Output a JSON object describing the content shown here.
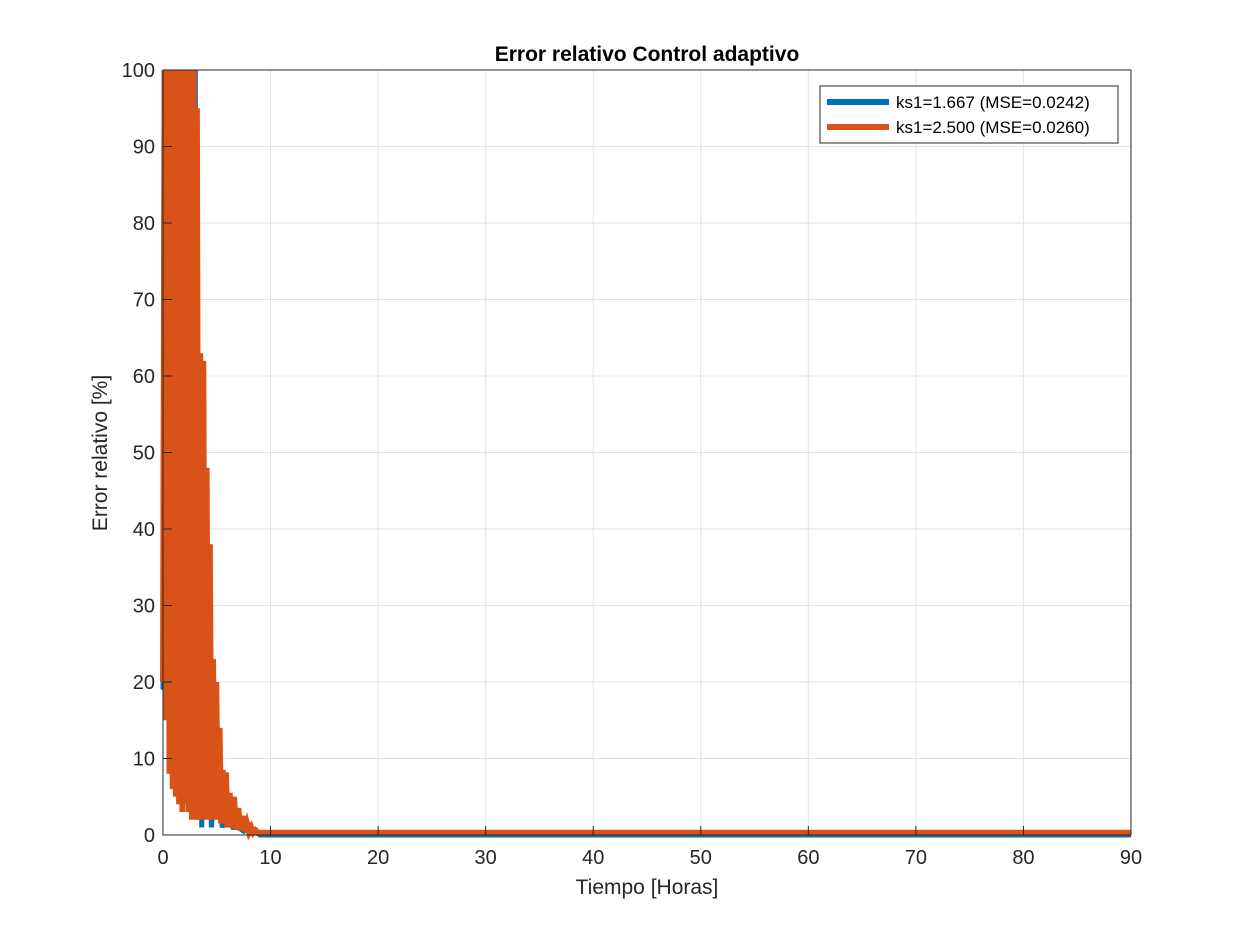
{
  "chart_data": {
    "type": "line",
    "title": "Error relativo  Control adaptivo",
    "xlabel": "Tiempo [Horas]",
    "ylabel": "Error relativo [%]",
    "xlim": [
      0,
      90
    ],
    "ylim": [
      0,
      100
    ],
    "xticks": [
      0,
      10,
      20,
      30,
      40,
      50,
      60,
      70,
      80,
      90
    ],
    "yticks": [
      0,
      10,
      20,
      30,
      40,
      50,
      60,
      70,
      80,
      90,
      100
    ],
    "grid": true,
    "legend_position": "top-right",
    "series": [
      {
        "name": "ks1=1.667 (MSE=0.0242)",
        "color": "#0072BD",
        "x": [
          0,
          0.1,
          0.2,
          0.3,
          0.4,
          0.6,
          0.8,
          1.0,
          1.2,
          1.4,
          1.6,
          1.8,
          2.0,
          2.2,
          2.4,
          2.6,
          2.8,
          3.0,
          3.2,
          3.4,
          3.6,
          4.0,
          4.5,
          5.0,
          5.5,
          6.0,
          6.5,
          7.0,
          7.5,
          8.0,
          9.0,
          10,
          20,
          30,
          40,
          50,
          60,
          70,
          80,
          90
        ],
        "y": [
          19,
          100,
          19,
          100,
          60,
          100,
          10,
          100,
          13,
          100,
          40,
          100,
          20,
          100,
          10,
          100,
          3,
          100,
          2,
          60,
          1,
          30,
          1,
          10,
          1,
          3,
          1,
          1,
          0.5,
          1,
          0,
          0,
          0,
          0,
          0,
          0,
          0,
          0,
          0,
          0
        ]
      },
      {
        "name": "ks1=2.500 (MSE=0.0260)",
        "color": "#D95319",
        "x": [
          0,
          0.15,
          0.3,
          0.45,
          0.6,
          0.75,
          0.9,
          1.05,
          1.2,
          1.35,
          1.5,
          1.65,
          1.8,
          1.95,
          2.1,
          2.25,
          2.4,
          2.55,
          2.7,
          2.85,
          3.0,
          3.15,
          3.3,
          3.45,
          3.6,
          3.75,
          3.9,
          4.05,
          4.2,
          4.35,
          4.5,
          4.65,
          4.8,
          4.95,
          5.1,
          5.25,
          5.4,
          5.55,
          5.7,
          5.85,
          6.0,
          6.2,
          6.4,
          6.6,
          6.8,
          7.0,
          7.2,
          7.4,
          7.6,
          7.8,
          8.0,
          8.2,
          8.4,
          8.6,
          8.8,
          9.0,
          10,
          20,
          30,
          40,
          50,
          60,
          70,
          80,
          90
        ],
        "y": [
          20,
          100,
          15,
          100,
          8,
          100,
          6,
          100,
          5,
          100,
          4,
          100,
          3,
          100,
          4,
          100,
          3,
          100,
          2,
          100,
          2,
          95,
          2,
          63,
          2,
          62,
          2,
          48,
          2,
          38,
          2,
          23,
          2,
          20,
          2,
          14,
          1.5,
          8.5,
          1.5,
          8.2,
          1,
          5.5,
          1,
          5,
          0.8,
          3.5,
          0.6,
          2.5,
          0.5,
          1.5,
          0.4,
          1,
          0.3,
          0.6,
          0.3,
          0.3,
          0.3,
          0.3,
          0.3,
          0.3,
          0.3,
          0.3,
          0.3,
          0.3,
          0.3
        ]
      }
    ]
  }
}
